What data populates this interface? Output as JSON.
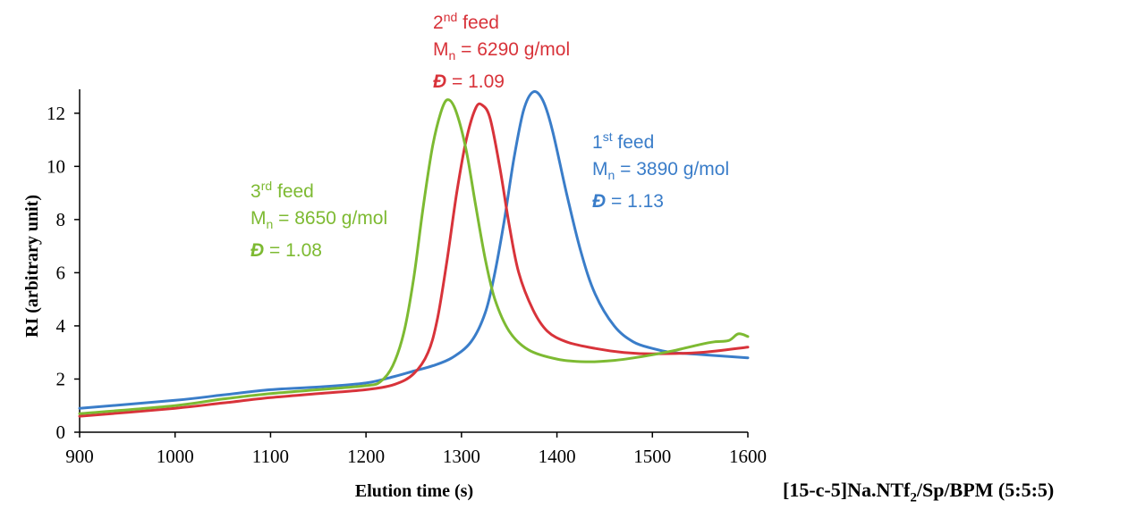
{
  "chart_data": {
    "type": "line",
    "xlabel": "Elution time (s)",
    "ylabel": "RI (arbitrary unit)",
    "xlim": [
      900,
      1600
    ],
    "ylim": [
      0,
      12.9
    ],
    "xticks": [
      900,
      1000,
      1100,
      1200,
      1300,
      1400,
      1500,
      1600
    ],
    "yticks": [
      0,
      2,
      4,
      6,
      8,
      10,
      12
    ],
    "grid": false,
    "series": [
      {
        "name": "1st feed",
        "color": "#3a7dc9",
        "points": [
          [
            900,
            0.9
          ],
          [
            1000,
            1.2
          ],
          [
            1050,
            1.4
          ],
          [
            1100,
            1.6
          ],
          [
            1150,
            1.7
          ],
          [
            1200,
            1.85
          ],
          [
            1230,
            2.1
          ],
          [
            1250,
            2.3
          ],
          [
            1270,
            2.5
          ],
          [
            1290,
            2.8
          ],
          [
            1310,
            3.4
          ],
          [
            1325,
            4.5
          ],
          [
            1335,
            6.0
          ],
          [
            1345,
            8.0
          ],
          [
            1355,
            10.3
          ],
          [
            1365,
            12.1
          ],
          [
            1375,
            12.8
          ],
          [
            1385,
            12.5
          ],
          [
            1395,
            11.4
          ],
          [
            1410,
            9.0
          ],
          [
            1425,
            6.8
          ],
          [
            1440,
            5.2
          ],
          [
            1460,
            4.0
          ],
          [
            1480,
            3.4
          ],
          [
            1500,
            3.15
          ],
          [
            1520,
            3.0
          ],
          [
            1540,
            2.95
          ],
          [
            1560,
            2.9
          ],
          [
            1600,
            2.8
          ]
        ]
      },
      {
        "name": "2nd feed",
        "color": "#d8333a",
        "points": [
          [
            900,
            0.6
          ],
          [
            1000,
            0.9
          ],
          [
            1050,
            1.1
          ],
          [
            1100,
            1.3
          ],
          [
            1150,
            1.45
          ],
          [
            1200,
            1.6
          ],
          [
            1230,
            1.8
          ],
          [
            1250,
            2.2
          ],
          [
            1265,
            3.0
          ],
          [
            1275,
            4.3
          ],
          [
            1285,
            6.5
          ],
          [
            1295,
            9.0
          ],
          [
            1305,
            11.0
          ],
          [
            1315,
            12.2
          ],
          [
            1322,
            12.3
          ],
          [
            1330,
            11.8
          ],
          [
            1340,
            10.0
          ],
          [
            1350,
            7.8
          ],
          [
            1360,
            6.0
          ],
          [
            1375,
            4.6
          ],
          [
            1390,
            3.8
          ],
          [
            1410,
            3.4
          ],
          [
            1440,
            3.15
          ],
          [
            1470,
            3.0
          ],
          [
            1500,
            2.95
          ],
          [
            1550,
            3.0
          ],
          [
            1600,
            3.2
          ]
        ]
      },
      {
        "name": "3rd feed",
        "color": "#7dba32",
        "points": [
          [
            900,
            0.7
          ],
          [
            1000,
            1.0
          ],
          [
            1050,
            1.25
          ],
          [
            1100,
            1.45
          ],
          [
            1150,
            1.6
          ],
          [
            1200,
            1.75
          ],
          [
            1215,
            1.9
          ],
          [
            1228,
            2.5
          ],
          [
            1240,
            3.8
          ],
          [
            1250,
            5.8
          ],
          [
            1260,
            8.5
          ],
          [
            1270,
            10.8
          ],
          [
            1280,
            12.2
          ],
          [
            1287,
            12.5
          ],
          [
            1295,
            12.0
          ],
          [
            1305,
            10.6
          ],
          [
            1315,
            8.5
          ],
          [
            1325,
            6.5
          ],
          [
            1335,
            5.0
          ],
          [
            1350,
            3.8
          ],
          [
            1370,
            3.1
          ],
          [
            1400,
            2.75
          ],
          [
            1430,
            2.65
          ],
          [
            1460,
            2.7
          ],
          [
            1490,
            2.85
          ],
          [
            1520,
            3.05
          ],
          [
            1550,
            3.3
          ],
          [
            1565,
            3.4
          ],
          [
            1580,
            3.45
          ],
          [
            1590,
            3.7
          ],
          [
            1600,
            3.6
          ]
        ]
      }
    ],
    "annotations": [
      {
        "series": "2nd feed",
        "feed": "2",
        "ord": "nd",
        "word": "feed",
        "mn_label": "M",
        "mn_sub": "n",
        "mn_value": "= 6290 g/mol",
        "disp_symbol": "Đ",
        "disp_value": "= 1.09",
        "color": "#d8333a"
      },
      {
        "series": "1st feed",
        "feed": "1",
        "ord": "st",
        "word": "feed",
        "mn_label": "M",
        "mn_sub": "n",
        "mn_value": "= 3890 g/mol",
        "disp_symbol": "Đ",
        "disp_value": "= 1.13",
        "color": "#3a7dc9"
      },
      {
        "series": "3rd feed",
        "feed": "3",
        "ord": "rd",
        "word": "feed",
        "mn_label": "M",
        "mn_sub": "n",
        "mn_value": "= 8650 g/mol",
        "disp_symbol": "Đ",
        "disp_value": "= 1.08",
        "color": "#7dba32"
      }
    ]
  },
  "caption": {
    "prefix": "[15-c-5]Na.NTf",
    "sub": "2",
    "suffix": "/Sp/BPM (5:5:5)"
  }
}
